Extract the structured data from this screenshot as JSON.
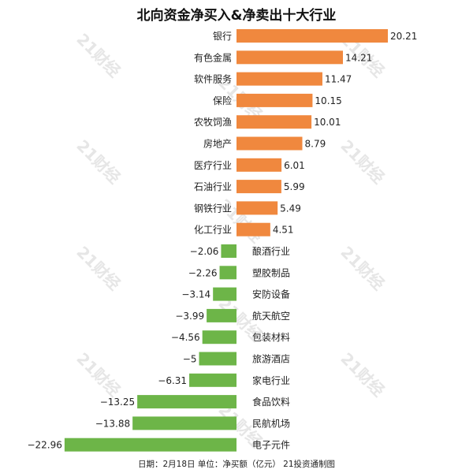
{
  "title": "北向资金净买入&净卖出十大行业",
  "caption": "日期：2月18日 单位：净买额（亿元） 21投资通制图",
  "watermark_text": "21财经",
  "colors": {
    "positive": "#f0883e",
    "negative": "#6db548"
  },
  "chart_data": {
    "type": "bar",
    "orientation": "horizontal",
    "title": "北向资金净买入&净卖出十大行业",
    "unit": "净买额（亿元）",
    "categories": [
      "银行",
      "有色金属",
      "软件服务",
      "保险",
      "农牧饲渔",
      "房地产",
      "医疗行业",
      "石油行业",
      "钢铁行业",
      "化工行业",
      "酿酒行业",
      "塑胶制品",
      "安防设备",
      "航天航空",
      "包装材料",
      "旅游酒店",
      "家电行业",
      "食品饮料",
      "民航机场",
      "电子元件"
    ],
    "values": [
      20.21,
      14.21,
      11.47,
      10.15,
      10.01,
      8.79,
      6.01,
      5.99,
      5.49,
      4.51,
      -2.06,
      -2.26,
      -3.14,
      -3.99,
      -4.56,
      -5,
      -6.31,
      -13.25,
      -13.88,
      -22.96
    ],
    "value_labels": [
      "20.21",
      "14.21",
      "11.47",
      "10.15",
      "10.01",
      "8.79",
      "6.01",
      "5.99",
      "5.49",
      "4.51",
      "−2.06",
      "−2.26",
      "−3.14",
      "−3.99",
      "−4.56",
      "−5",
      "−6.31",
      "−13.25",
      "−13.88",
      "−22.96"
    ],
    "xlim": [
      -22.96,
      20.21
    ],
    "grid": false,
    "legend": "none"
  }
}
